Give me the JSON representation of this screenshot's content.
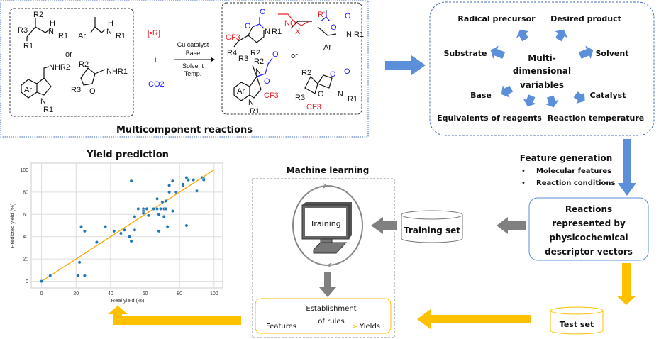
{
  "reactions_panel": {
    "title": "Multicomponent reactions",
    "or": "or",
    "radical": "[•R]",
    "plus": "+",
    "co2": "CO2",
    "conditions_above": [
      "Cu catalyst",
      "Base"
    ],
    "conditions_below": [
      "Solvent",
      "Temp."
    ],
    "substrate_labels": [
      "R2",
      "R3",
      "R1",
      "H",
      "N",
      "R1",
      "Ar",
      "H",
      "N",
      "R1",
      "NHR2",
      "Ar",
      "N",
      "R1",
      "R2",
      "R3",
      "O",
      "NHR1"
    ],
    "product_labels": [
      "CF3",
      "R4",
      "R3",
      "R2",
      "O",
      "O",
      "N",
      "R1",
      "NC",
      "X",
      "R'",
      "O",
      "O",
      "N",
      "R1",
      "Ar",
      "R2",
      "N",
      "O",
      "O",
      "Ar",
      "CF3",
      "N",
      "R1",
      "R2",
      "R3",
      "CF3",
      "O",
      "O",
      "O",
      "N",
      "R1"
    ]
  },
  "variables_panel": {
    "center": [
      "Multi-",
      "dimensional",
      "variables"
    ],
    "items": [
      "Radical precursor",
      "Desired product",
      "Substrate",
      "Solvent",
      "Base",
      "Catalyst",
      "Equivalents of reagents",
      "Reaction temperature"
    ]
  },
  "feature_generation": {
    "title": "Feature generation",
    "bullets": [
      "Molecular features",
      "Reaction conditions"
    ]
  },
  "reactions_box": [
    "Reactions",
    "represented by",
    "physicochemical",
    "descriptor vectors"
  ],
  "training_set": "Training set",
  "test_set": "Test set",
  "machine_learning": {
    "title": "Machine learning",
    "monitor_label": "Training",
    "rules_box": {
      "left": "Features",
      "center": [
        "Establishment",
        "of rules"
      ],
      "arrow": ">",
      "right": "Yields"
    }
  },
  "colors": {
    "blue_arrow": "#5b8fd9",
    "gray_arrow": "#808080",
    "yellow_arrow": "#ffc000",
    "point": "#1f77b4",
    "fit_line": "#ffa500"
  },
  "chart_data": {
    "type": "scatter",
    "title": "Yield prediction",
    "xlabel": "Real yield (%)",
    "ylabel": "Predicted yield (%)",
    "xlim": [
      -6,
      105
    ],
    "ylim": [
      -6,
      106
    ],
    "xticks": [
      0,
      20,
      40,
      60,
      80,
      100
    ],
    "yticks": [
      0,
      20,
      40,
      60,
      80,
      100
    ],
    "grid": true,
    "reference_line": [
      [
        0,
        0
      ],
      [
        100,
        100
      ]
    ],
    "points": [
      [
        0,
        0
      ],
      [
        5,
        5
      ],
      [
        21,
        5
      ],
      [
        22,
        17
      ],
      [
        25,
        5
      ],
      [
        23,
        49
      ],
      [
        25,
        45
      ],
      [
        32,
        35
      ],
      [
        37,
        49
      ],
      [
        42,
        45
      ],
      [
        46,
        43
      ],
      [
        48,
        46
      ],
      [
        51,
        40
      ],
      [
        52,
        36
      ],
      [
        52,
        90
      ],
      [
        54,
        58
      ],
      [
        54,
        46
      ],
      [
        56,
        65
      ],
      [
        59,
        65
      ],
      [
        59,
        63
      ],
      [
        59,
        61
      ],
      [
        61,
        65
      ],
      [
        62,
        59
      ],
      [
        65,
        65
      ],
      [
        67,
        74
      ],
      [
        67,
        65
      ],
      [
        68,
        60
      ],
      [
        68,
        45
      ],
      [
        69,
        65
      ],
      [
        70,
        71
      ],
      [
        71,
        65
      ],
      [
        71,
        58
      ],
      [
        72,
        72
      ],
      [
        72,
        65
      ],
      [
        73,
        49
      ],
      [
        74,
        86
      ],
      [
        74,
        80
      ],
      [
        76,
        90
      ],
      [
        76,
        63
      ],
      [
        78,
        80
      ],
      [
        82,
        87
      ],
      [
        82,
        86
      ],
      [
        84,
        93
      ],
      [
        84,
        50
      ],
      [
        85,
        91
      ],
      [
        88,
        91
      ],
      [
        90,
        81
      ],
      [
        93,
        93
      ],
      [
        94,
        92
      ],
      [
        94,
        91
      ]
    ]
  }
}
